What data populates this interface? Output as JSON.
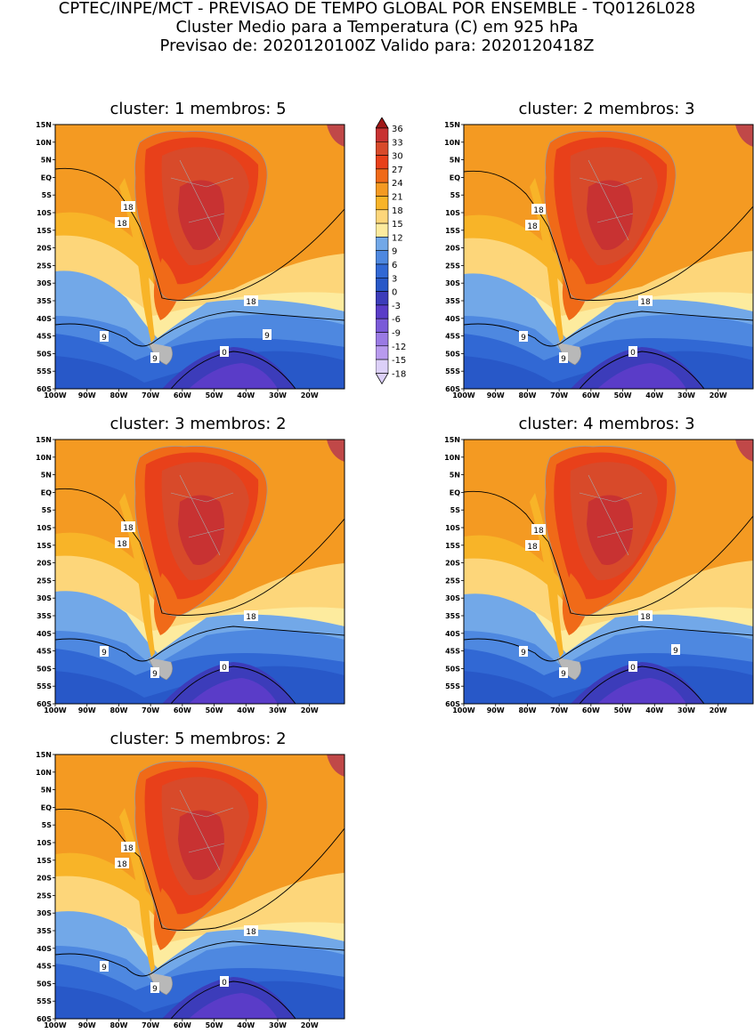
{
  "header": {
    "line1": "CPTEC/INPE/MCT - PREVISAO DE TEMPO GLOBAL POR ENSEMBLE - TQ0126L028",
    "line2": "Cluster Medio para a Temperatura (C) em 925 hPa",
    "line3": "Previsao de: 2020120100Z   Valido para: 2020120418Z"
  },
  "axes": {
    "lat_labels": [
      "15N",
      "10N",
      "5N",
      "EQ",
      "5S",
      "10S",
      "15S",
      "20S",
      "25S",
      "30S",
      "35S",
      "40S",
      "45S",
      "50S",
      "55S",
      "60S"
    ],
    "lon_labels": [
      "100W",
      "90W",
      "80W",
      "70W",
      "60W",
      "50W",
      "40W",
      "30W",
      "20W"
    ]
  },
  "colorbar": {
    "labels": [
      "36",
      "33",
      "30",
      "27",
      "24",
      "21",
      "18",
      "15",
      "12",
      "9",
      "6",
      "3",
      "0",
      "-3",
      "-6",
      "-9",
      "-12",
      "-15",
      "-18"
    ],
    "colors": [
      "#a01818",
      "#c83232",
      "#d84a2a",
      "#e8401a",
      "#f06a18",
      "#f49a22",
      "#f8b428",
      "#fdd67a",
      "#fdeb9e",
      "#72a8e8",
      "#4e88e0",
      "#3168d4",
      "#2858c8",
      "#3c3cba",
      "#5a3cc8",
      "#7a5ad8",
      "#9a7ae4",
      "#b89aee",
      "#dcd0f8"
    ]
  },
  "panels": [
    {
      "title": "cluster: 1   membros: 5",
      "labels": {
        "l18a": "18",
        "l18b": "18",
        "l18c": "18",
        "l9a": "9",
        "l9b": "9",
        "l9c": "9",
        "l0": "0"
      }
    },
    {
      "title": "cluster: 2   membros: 3",
      "labels": {
        "l18a": "18",
        "l18b": "18",
        "l18c": "18",
        "l9a": "9",
        "l9b": "9",
        "l9c": "",
        "l0": "0"
      }
    },
    {
      "title": "cluster: 3   membros: 2",
      "labels": {
        "l18a": "18",
        "l18b": "18",
        "l18c": "18",
        "l9a": "9",
        "l9b": "9",
        "l9c": "",
        "l0": "0"
      }
    },
    {
      "title": "cluster: 4   membros: 3",
      "labels": {
        "l18a": "18",
        "l18b": "18",
        "l18c": "18",
        "l9a": "9",
        "l9b": "9",
        "l9c": "9",
        "l0": "0"
      }
    },
    {
      "title": "cluster: 5   membros: 2",
      "labels": {
        "l18a": "18",
        "l18b": "18",
        "l18c": "18",
        "l9a": "9",
        "l9b": "9",
        "l9c": "",
        "l0": "0"
      }
    }
  ]
}
